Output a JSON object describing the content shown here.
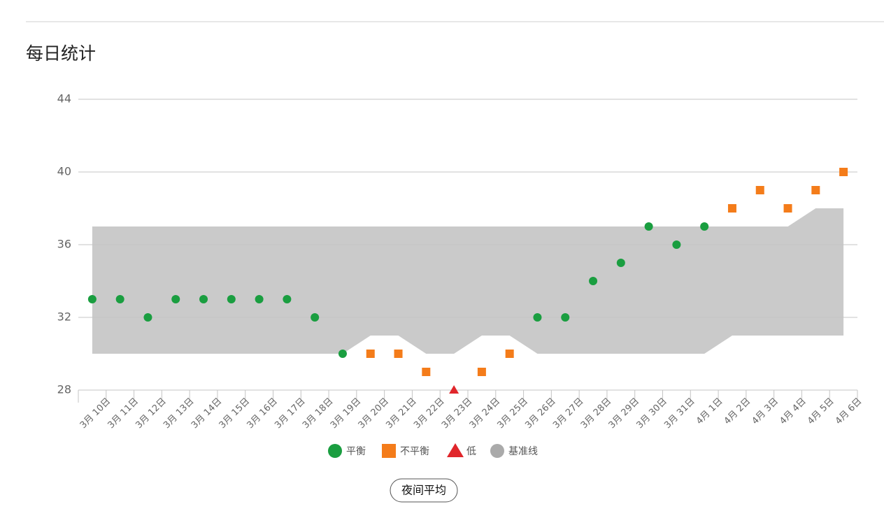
{
  "chart_data": {
    "type": "scatter-band",
    "title": "每日统计",
    "categories": [
      "3月 10日",
      "3月 11日",
      "3月 12日",
      "3月 13日",
      "3月 14日",
      "3月 15日",
      "3月 16日",
      "3月 17日",
      "3月 18日",
      "3月 19日",
      "3月 20日",
      "3月 21日",
      "3月 22日",
      "3月 23日",
      "3月 24日",
      "3月 25日",
      "3月 26日",
      "3月 27日",
      "3月 28日",
      "3月 29日",
      "3月 30日",
      "3月 31日",
      "4月 1日",
      "4月 2日",
      "4月 3日",
      "4月 4日",
      "4月 5日",
      "4月 6日"
    ],
    "series": [
      {
        "name": "平衡",
        "color": "#1a9e40",
        "marker": "circle",
        "values": [
          33,
          33,
          32,
          33,
          33,
          33,
          33,
          33,
          32,
          30,
          null,
          null,
          null,
          null,
          null,
          null,
          32,
          32,
          34,
          35,
          37,
          36,
          37,
          null,
          null,
          null,
          null,
          null
        ]
      },
      {
        "name": "不平衡",
        "color": "#f47c1a",
        "marker": "square",
        "values": [
          null,
          null,
          null,
          null,
          null,
          null,
          null,
          null,
          null,
          null,
          30,
          30,
          29,
          null,
          29,
          30,
          null,
          null,
          null,
          null,
          null,
          null,
          null,
          38,
          39,
          38,
          39,
          40
        ]
      },
      {
        "name": "低",
        "color": "#e0262b",
        "marker": "triangle",
        "values": [
          null,
          null,
          null,
          null,
          null,
          null,
          null,
          null,
          null,
          null,
          null,
          null,
          null,
          28,
          null,
          null,
          null,
          null,
          null,
          null,
          null,
          null,
          null,
          null,
          null,
          null,
          null,
          null
        ]
      },
      {
        "name": "基准线",
        "color": "#aaaaaa",
        "band_color": "#cacaca",
        "marker": "band",
        "lower": [
          30,
          30,
          30,
          30,
          30,
          30,
          30,
          30,
          30,
          30,
          31,
          31,
          30,
          30,
          31,
          31,
          30,
          30,
          30,
          30,
          30,
          30,
          30,
          31,
          31,
          31,
          31,
          31
        ],
        "upper": [
          37,
          37,
          37,
          37,
          37,
          37,
          37,
          37,
          37,
          37,
          37,
          37,
          37,
          37,
          37,
          37,
          37,
          37,
          37,
          37,
          37,
          37,
          37,
          37,
          37,
          37,
          38,
          38
        ]
      }
    ],
    "ylim": [
      28,
      44
    ],
    "yticks": [
      28,
      32,
      36,
      40,
      44
    ],
    "grid": true,
    "button": "夜间平均"
  }
}
